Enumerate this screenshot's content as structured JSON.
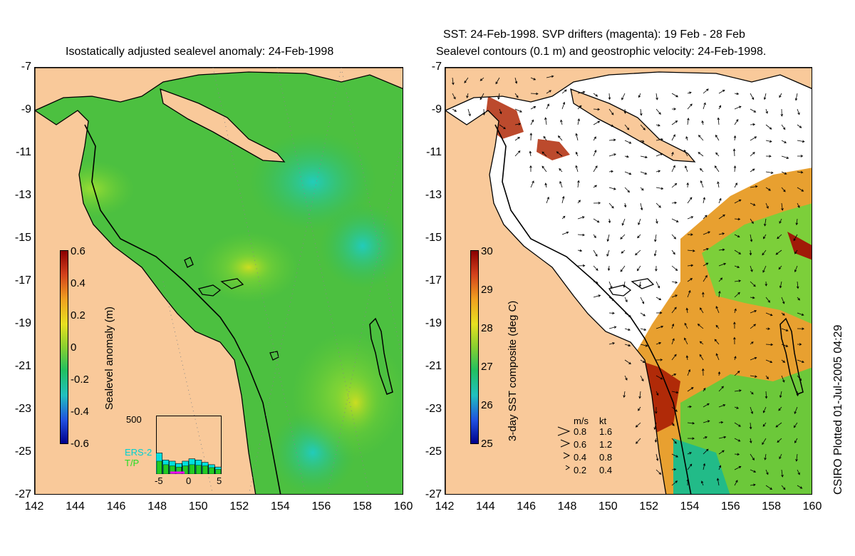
{
  "left_panel": {
    "title": "Isostatically adjusted sealevel anomaly: 24-Feb-1998",
    "colorbar": {
      "label": "Sealevel anomaly (m)",
      "ticks": [
        "0.6",
        "0.4",
        "0.2",
        "0",
        "-0.2",
        "-0.4",
        "-0.6"
      ],
      "range": [
        -0.6,
        0.6
      ]
    },
    "histogram": {
      "ymax_label": "500",
      "xticks": [
        "-5",
        "0",
        "5"
      ],
      "legend": [
        {
          "label": "ERS-2",
          "color": "#00e0e0"
        },
        {
          "label": "T/P",
          "color": "#22cc22"
        }
      ],
      "ers2_values": [
        180,
        120,
        110,
        90,
        110,
        130,
        120,
        100,
        80,
        60
      ],
      "tp_values": [
        110,
        80,
        70,
        60,
        70,
        80,
        75,
        70,
        55,
        40
      ],
      "ymax": 500
    }
  },
  "right_panel": {
    "title_line1": "SST: 24-Feb-1998. SVP drifters (magenta): 19 Feb - 28 Feb",
    "title_line2": "Sealevel contours (0.1 m) and geostrophic velocity: 24-Feb-1998.",
    "colorbar": {
      "label": "3-day SST composite (deg C)",
      "ticks": [
        "30",
        "29",
        "28",
        "27",
        "26",
        "25"
      ],
      "range": [
        25,
        30
      ]
    },
    "velocity_legend": {
      "header_ms": "m/s",
      "header_kt": "kt",
      "rows": [
        {
          "ms": "0.8",
          "kt": "1.6"
        },
        {
          "ms": "0.6",
          "kt": "1.2"
        },
        {
          "ms": "0.4",
          "kt": "0.8"
        },
        {
          "ms": "0.2",
          "kt": "0.4"
        }
      ]
    }
  },
  "axes": {
    "lon_ticks": [
      "142",
      "144",
      "146",
      "148",
      "150",
      "152",
      "154",
      "156",
      "158",
      "160"
    ],
    "lat_ticks": [
      "-7",
      "-9",
      "-11",
      "-13",
      "-15",
      "-17",
      "-19",
      "-21",
      "-23",
      "-25",
      "-27"
    ],
    "lon_range": [
      142,
      160
    ],
    "lat_range": [
      -27,
      -7
    ]
  },
  "credit": "CSIRO Plotted 01-Jul-2005 04:29",
  "colors": {
    "land": "#f9c99a",
    "ocean_base": "#33bb33",
    "sst_empty": "#ffffff"
  }
}
